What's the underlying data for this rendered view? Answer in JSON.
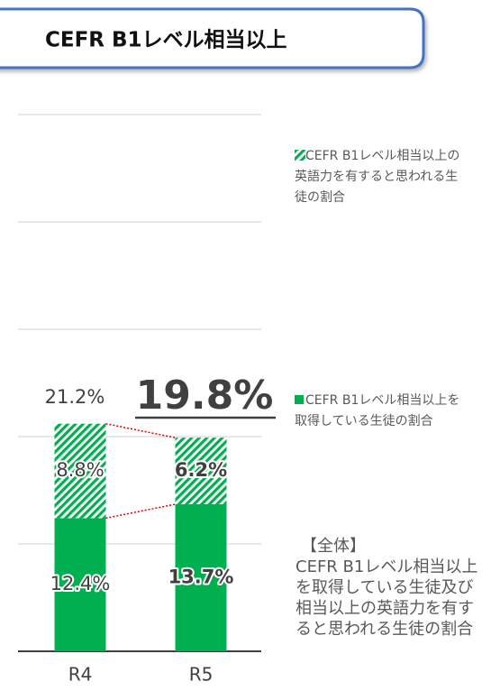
{
  "header": {
    "title": "CEFR B1レベル相当以上"
  },
  "chart_data": {
    "type": "stacked_bar",
    "categories": [
      "R4",
      "R5"
    ],
    "series": [
      {
        "name": "CEFR B1レベル相当以上を取得している生徒の割合",
        "color": "#00b050",
        "values": [
          12.4,
          13.7
        ],
        "value_labels": [
          "12.4%",
          "13.7%"
        ]
      },
      {
        "name": "CEFR B1レベル相当以上の英語力を有すると思われる生徒の割合",
        "color": "#00b050",
        "hatch": true,
        "values": [
          8.8,
          6.2
        ],
        "value_labels": [
          "8.8%",
          "6.2%"
        ]
      }
    ],
    "totals": [
      21.2,
      19.8
    ],
    "total_labels": [
      "21.2%",
      "19.8%"
    ],
    "ylim": [
      0,
      50
    ],
    "yticks": [
      0,
      10,
      20,
      30,
      40,
      50
    ],
    "grid": true,
    "note_title": "【全体】",
    "note": "CEFR B1レベル相当以上を取得している生徒及び相当以上の英語力を有すると思われる生徒の割合"
  }
}
